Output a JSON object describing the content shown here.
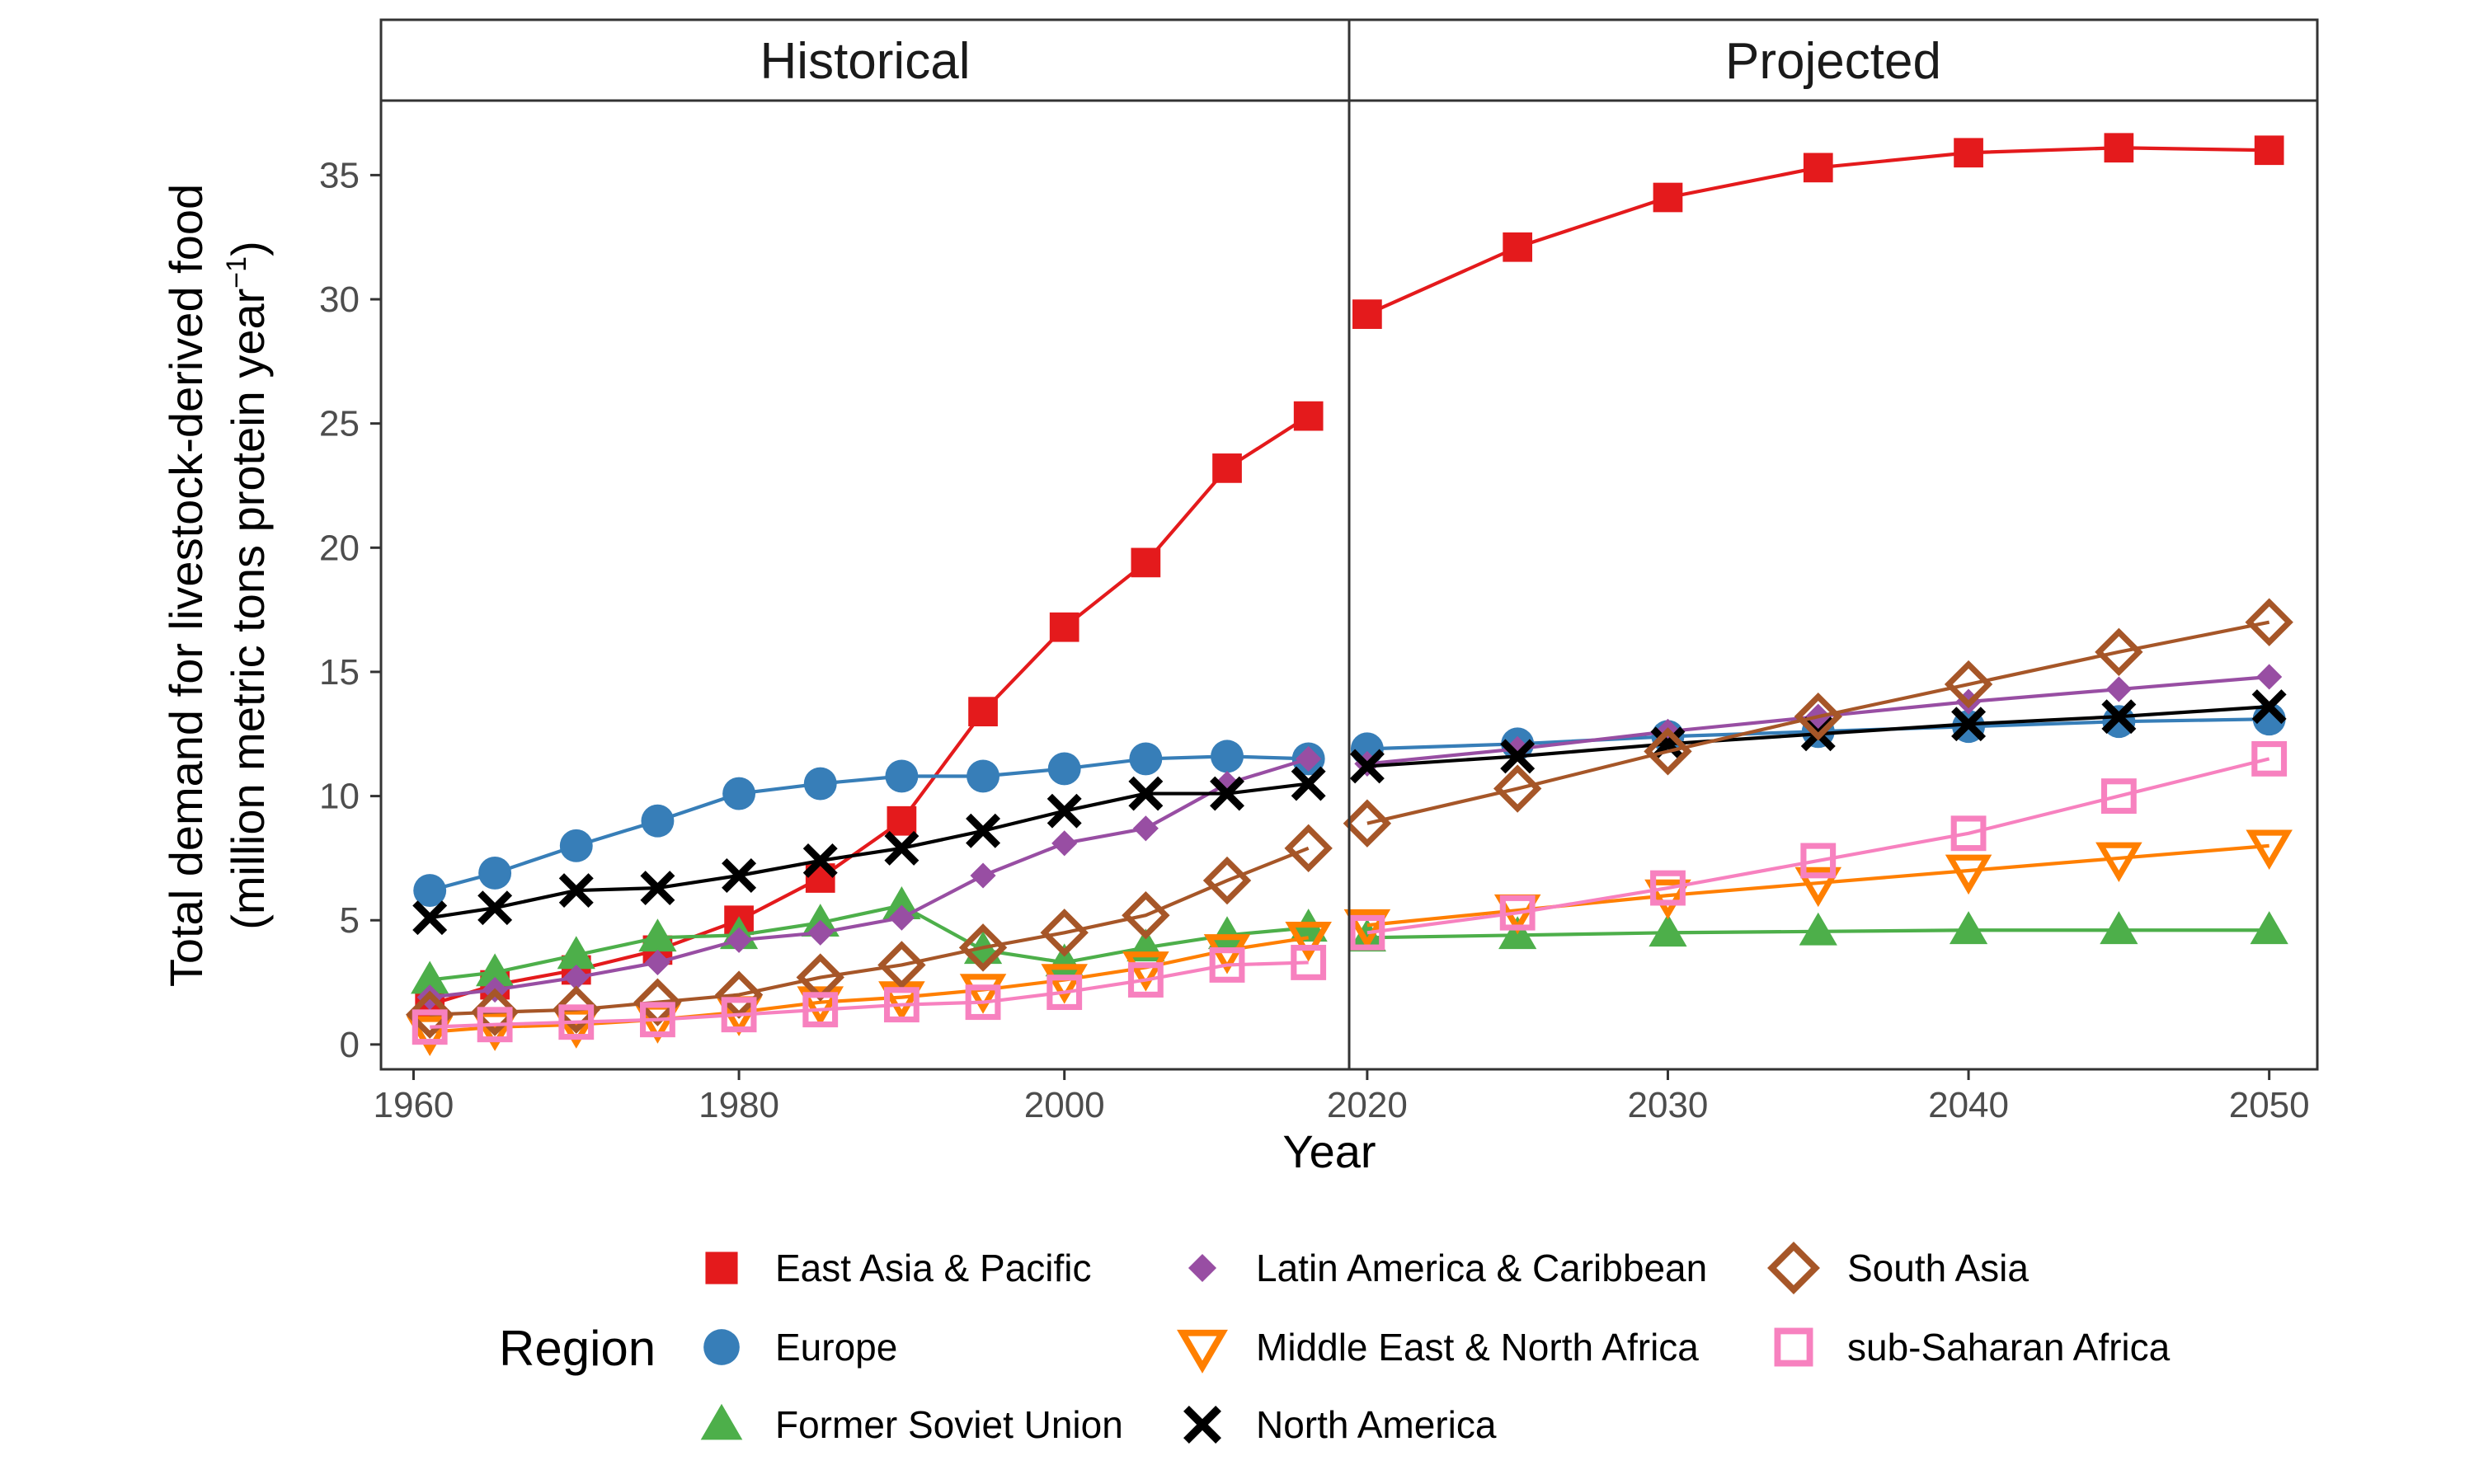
{
  "chart_data": {
    "type": "line",
    "ylabel_line1": "Total demand for livestock-derived food",
    "ylabel_line2": "(million metric tons protein year",
    "ylabel_sup": "−1",
    "ylabel_close": ")",
    "xlabel": "Year",
    "ylim": [
      -1,
      38
    ],
    "yticks": [
      0,
      5,
      10,
      15,
      20,
      25,
      30,
      35
    ],
    "legend_title": "Region",
    "legend_position": "bottom",
    "grid": false,
    "panels": [
      {
        "label": "Historical",
        "xlim": [
          1958,
          2017.5
        ],
        "xticks": [
          1960,
          1980,
          2000
        ],
        "x": [
          1961,
          1965,
          1970,
          1975,
          1980,
          1985,
          1990,
          1995,
          2000,
          2005,
          2010,
          2015
        ]
      },
      {
        "label": "Projected",
        "xlim": [
          2019.4,
          2051.6
        ],
        "xticks": [
          2020,
          2030,
          2040,
          2050
        ],
        "x": [
          2020,
          2025,
          2030,
          2035,
          2040,
          2045,
          2050
        ]
      }
    ],
    "series": [
      {
        "name": "East Asia & Pacific",
        "color": "#e41a1c",
        "shape": "square-filled",
        "historical": [
          1.6,
          2.4,
          3.0,
          3.8,
          5.0,
          6.7,
          9.0,
          13.4,
          16.8,
          19.4,
          23.2,
          25.3
        ],
        "projected": [
          29.4,
          32.1,
          34.1,
          35.3,
          35.9,
          36.1,
          36.0
        ]
      },
      {
        "name": "Europe",
        "color": "#377eb8",
        "shape": "circle-filled",
        "historical": [
          6.2,
          6.9,
          8.0,
          9.0,
          10.1,
          10.5,
          10.8,
          10.8,
          11.1,
          11.5,
          11.6,
          11.5
        ],
        "projected": [
          11.9,
          12.1,
          12.4,
          12.6,
          12.8,
          13.0,
          13.1
        ]
      },
      {
        "name": "Former Soviet Union",
        "color": "#4daf4a",
        "shape": "triangle-filled",
        "historical": [
          2.6,
          2.9,
          3.6,
          4.3,
          4.4,
          4.9,
          5.6,
          3.8,
          3.3,
          3.9,
          4.4,
          4.7
        ],
        "projected": [
          4.3,
          4.4,
          4.5,
          4.55,
          4.6,
          4.6,
          4.6
        ]
      },
      {
        "name": "Latin America & Caribbean",
        "color": "#984ea3",
        "shape": "diamond-filled",
        "historical": [
          1.9,
          2.2,
          2.7,
          3.3,
          4.2,
          4.5,
          5.1,
          6.8,
          8.1,
          8.7,
          10.5,
          11.5
        ],
        "projected": [
          11.3,
          11.9,
          12.6,
          13.2,
          13.8,
          14.3,
          14.8
        ]
      },
      {
        "name": "Middle East & North Africa",
        "color": "#ff7f00",
        "shape": "triangle-down-open",
        "historical": [
          0.5,
          0.7,
          0.8,
          1.0,
          1.3,
          1.7,
          1.9,
          2.2,
          2.6,
          3.1,
          3.8,
          4.3
        ],
        "projected": [
          4.8,
          5.4,
          6.0,
          6.5,
          7.0,
          7.5,
          8.0
        ]
      },
      {
        "name": "North America",
        "color": "#000000",
        "shape": "x",
        "historical": [
          5.1,
          5.5,
          6.2,
          6.3,
          6.8,
          7.4,
          7.9,
          8.6,
          9.4,
          10.1,
          10.1,
          10.5
        ],
        "projected": [
          11.2,
          11.6,
          12.1,
          12.5,
          12.9,
          13.2,
          13.6
        ]
      },
      {
        "name": "South Asia",
        "color": "#a65628",
        "shape": "diamond-open",
        "historical": [
          1.2,
          1.3,
          1.4,
          1.7,
          2.0,
          2.7,
          3.2,
          3.9,
          4.5,
          5.2,
          6.6,
          7.9
        ],
        "projected": [
          8.9,
          10.3,
          11.8,
          13.2,
          14.5,
          15.8,
          17.0
        ]
      },
      {
        "name": "sub-Saharan Africa",
        "color": "#f781bf",
        "shape": "square-open",
        "historical": [
          0.7,
          0.8,
          0.9,
          1.0,
          1.2,
          1.4,
          1.6,
          1.7,
          2.1,
          2.6,
          3.2,
          3.3
        ],
        "projected": [
          4.5,
          5.3,
          6.3,
          7.4,
          8.5,
          10.0,
          11.5
        ]
      }
    ]
  }
}
